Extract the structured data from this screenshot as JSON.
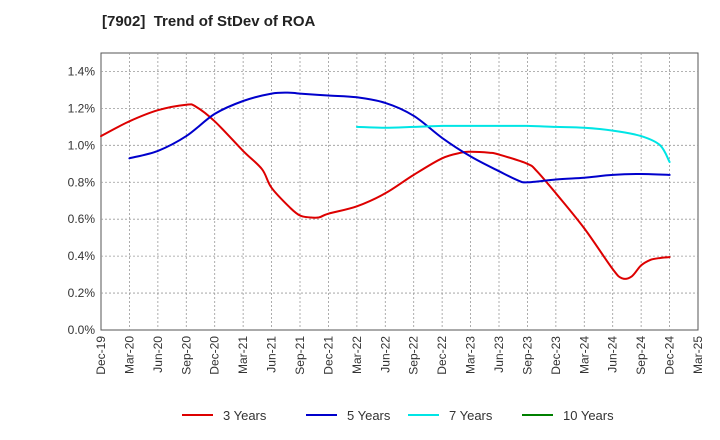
{
  "chart_data": {
    "type": "line",
    "title": "[7902]  Trend of StDev of ROA",
    "xlabel": "",
    "ylabel": "",
    "x_ticks": [
      "Dec-19",
      "Mar-20",
      "Jun-20",
      "Sep-20",
      "Dec-20",
      "Mar-21",
      "Jun-21",
      "Sep-21",
      "Dec-21",
      "Mar-22",
      "Jun-22",
      "Sep-22",
      "Dec-22",
      "Mar-23",
      "Jun-23",
      "Sep-23",
      "Dec-23",
      "Mar-24",
      "Jun-24",
      "Sep-24",
      "Dec-24",
      "Mar-25"
    ],
    "y_ticks": [
      "0.0%",
      "0.2%",
      "0.4%",
      "0.6%",
      "0.8%",
      "1.0%",
      "1.2%",
      "1.4%"
    ],
    "ylim": [
      0,
      1.5
    ],
    "y_unit": "%",
    "grid": true,
    "legend_position": "bottom",
    "series": [
      {
        "name": "3 Years",
        "color": "#dd0000",
        "points": [
          [
            "Dec-19",
            1.05
          ],
          [
            "Mar-20",
            1.13
          ],
          [
            "Jun-20",
            1.19
          ],
          [
            "Sep-20",
            1.22
          ],
          [
            "Oct-20",
            1.21
          ],
          [
            "Dec-20",
            1.13
          ],
          [
            "Mar-21",
            0.97
          ],
          [
            "May-21",
            0.87
          ],
          [
            "Jun-21",
            0.77
          ],
          [
            "Aug-21",
            0.66
          ],
          [
            "Sep-21",
            0.62
          ],
          [
            "Oct-21",
            0.61
          ],
          [
            "Nov-21",
            0.61
          ],
          [
            "Dec-21",
            0.63
          ],
          [
            "Mar-22",
            0.67
          ],
          [
            "Jun-22",
            0.74
          ],
          [
            "Sep-22",
            0.84
          ],
          [
            "Dec-22",
            0.93
          ],
          [
            "Feb-23",
            0.96
          ],
          [
            "Mar-23",
            0.965
          ],
          [
            "May-23",
            0.96
          ],
          [
            "Jun-23",
            0.95
          ],
          [
            "Sep-23",
            0.9
          ],
          [
            "Oct-23",
            0.86
          ],
          [
            "Dec-23",
            0.74
          ],
          [
            "Mar-24",
            0.55
          ],
          [
            "Jun-24",
            0.33
          ],
          [
            "Jul-24",
            0.28
          ],
          [
            "Aug-24",
            0.29
          ],
          [
            "Sep-24",
            0.35
          ],
          [
            "Oct-24",
            0.38
          ],
          [
            "Nov-24",
            0.39
          ],
          [
            "Dec-24",
            0.395
          ]
        ]
      },
      {
        "name": "5 Years",
        "color": "#0000cc",
        "points": [
          [
            "Mar-20",
            0.93
          ],
          [
            "Jun-20",
            0.97
          ],
          [
            "Sep-20",
            1.05
          ],
          [
            "Dec-20",
            1.17
          ],
          [
            "Mar-21",
            1.24
          ],
          [
            "Jun-21",
            1.28
          ],
          [
            "Aug-21",
            1.285
          ],
          [
            "Sep-21",
            1.28
          ],
          [
            "Dec-21",
            1.27
          ],
          [
            "Mar-22",
            1.26
          ],
          [
            "Jun-22",
            1.23
          ],
          [
            "Sep-22",
            1.16
          ],
          [
            "Dec-22",
            1.04
          ],
          [
            "Mar-23",
            0.94
          ],
          [
            "Jun-23",
            0.86
          ],
          [
            "Aug-23",
            0.81
          ],
          [
            "Sep-23",
            0.8
          ],
          [
            "Dec-23",
            0.815
          ],
          [
            "Mar-24",
            0.825
          ],
          [
            "Jun-24",
            0.84
          ],
          [
            "Sep-24",
            0.845
          ],
          [
            "Dec-24",
            0.84
          ]
        ]
      },
      {
        "name": "7 Years",
        "color": "#00e5e5",
        "points": [
          [
            "Mar-22",
            1.1
          ],
          [
            "Jun-22",
            1.095
          ],
          [
            "Sep-22",
            1.1
          ],
          [
            "Dec-22",
            1.105
          ],
          [
            "Mar-23",
            1.105
          ],
          [
            "Jun-23",
            1.105
          ],
          [
            "Sep-23",
            1.105
          ],
          [
            "Dec-23",
            1.1
          ],
          [
            "Mar-24",
            1.095
          ],
          [
            "Jun-24",
            1.08
          ],
          [
            "Sep-24",
            1.05
          ],
          [
            "Nov-24",
            1.0
          ],
          [
            "Dec-24",
            0.91
          ]
        ]
      },
      {
        "name": "10 Years",
        "color": "#008000",
        "points": []
      }
    ]
  }
}
